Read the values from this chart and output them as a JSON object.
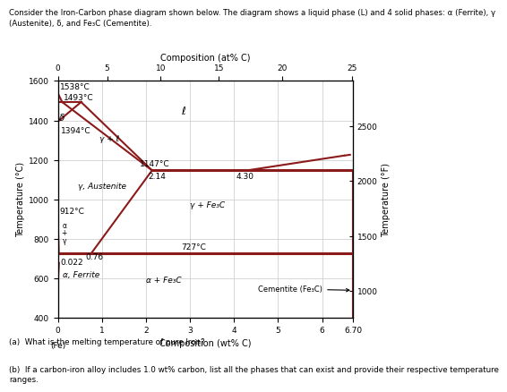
{
  "title_line1": "Consider the Iron-Carbon phase diagram shown below. The diagram shows a liquid phase (L) and 4 solid phases: α (Ferrite), γ",
  "title_line2": "(Austenite), δ, and Fe₃C (Cementite).",
  "xlabel": "Composition (wt% C)",
  "xlabel_top": "Composition (at% C)",
  "ylabel_left": "Temperature (°C)",
  "ylabel_right": "Temperature (°F)",
  "xlim": [
    0,
    6.7
  ],
  "ylim": [
    400,
    1600
  ],
  "line_color": "#8b1a1a",
  "bg_color": "#ffffff",
  "grid_color": "#c8c8c8",
  "footnote_a": "(a)  What is the melting temperature of pure Iron?",
  "footnote_b": "(b)  If a carbon-iron alloy includes 1.0 wt% carbon, list all the phases that can exist and provide their respective temperature\nranges."
}
